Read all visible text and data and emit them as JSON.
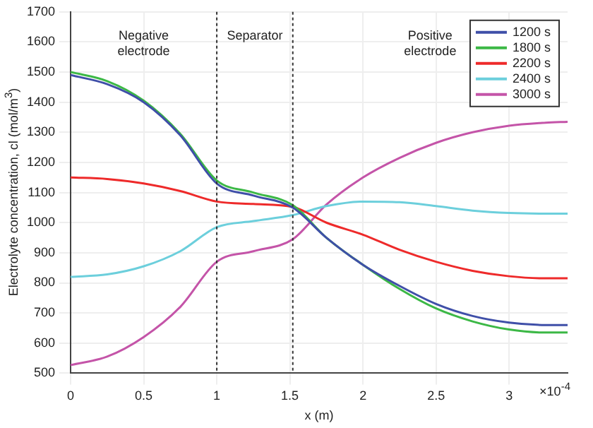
{
  "chart_data": {
    "type": "line",
    "xlabel": "x (m)",
    "ylabel": "Electrolyte concentration, cl (mol/m$^{3}$)",
    "x": [
      0,
      0.25,
      0.5,
      0.75,
      1,
      1.25,
      1.52,
      1.75,
      2,
      2.25,
      2.5,
      2.75,
      3,
      3.25,
      3.4
    ],
    "series": [
      {
        "name": "1200 s",
        "color": "#3f4fa8",
        "values": [
          1490,
          1460,
          1400,
          1290,
          1130,
          1090,
          1050,
          950,
          860,
          790,
          730,
          690,
          668,
          660,
          660
        ]
      },
      {
        "name": "1800 s",
        "color": "#3cb846",
        "values": [
          1500,
          1470,
          1405,
          1295,
          1140,
          1100,
          1058,
          950,
          860,
          780,
          715,
          672,
          645,
          635,
          635
        ]
      },
      {
        "name": "2200 s",
        "color": "#ee2a2a",
        "values": [
          1150,
          1145,
          1130,
          1105,
          1070,
          1062,
          1052,
          1000,
          960,
          910,
          870,
          840,
          822,
          815,
          815
        ]
      },
      {
        "name": "2400 s",
        "color": "#6ccfdc",
        "values": [
          820,
          828,
          855,
          905,
          985,
          1005,
          1025,
          1055,
          1070,
          1068,
          1055,
          1040,
          1032,
          1030,
          1030
        ]
      },
      {
        "name": "3000 s",
        "color": "#c454a8",
        "values": [
          527,
          555,
          620,
          720,
          870,
          905,
          945,
          1060,
          1150,
          1215,
          1265,
          1300,
          1322,
          1332,
          1335
        ]
      }
    ],
    "xlim": [
      0,
      3.4
    ],
    "xticks": [
      0,
      0.5,
      1,
      1.5,
      2,
      2.5,
      3
    ],
    "ylim": [
      500,
      1700
    ],
    "yticks": [
      500,
      600,
      700,
      800,
      900,
      1000,
      1100,
      1200,
      1300,
      1400,
      1500,
      1600,
      1700
    ],
    "ref_lines": [
      {
        "axis": "x",
        "value": 1,
        "color": "#333333",
        "line_style": "dotted"
      },
      {
        "axis": "x",
        "value": 1.52,
        "color": "#333333",
        "line_style": "dotted"
      }
    ],
    "annotations": [
      "Negative\nelectrode",
      "Separator",
      "Positive\nelectrode",
      "×10$^{-4}$"
    ],
    "grid": true,
    "legend": "top right",
    "marker": "none",
    "line_style": "solid"
  }
}
